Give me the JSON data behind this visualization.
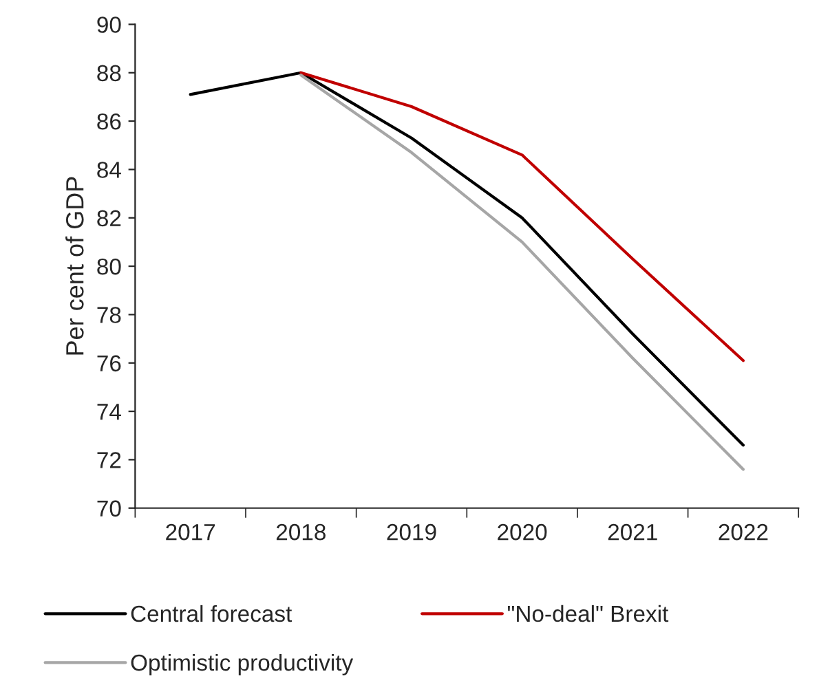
{
  "chart_data": {
    "type": "line",
    "ylabel": "Per cent of GDP",
    "categories": [
      "2017",
      "2018",
      "2019",
      "2020",
      "2021",
      "2022"
    ],
    "series": [
      {
        "name": "Central forecast",
        "color": "#000000",
        "values": [
          87.1,
          88.0,
          85.3,
          82.0,
          77.2,
          72.6
        ]
      },
      {
        "name": "\"No-deal\" Brexit",
        "color": "#c00000",
        "values": [
          null,
          88.0,
          86.6,
          84.6,
          80.3,
          76.1
        ]
      },
      {
        "name": "Optimistic productivity",
        "color": "#a6a6a6",
        "values": [
          null,
          87.9,
          84.7,
          81.0,
          76.2,
          71.6
        ]
      }
    ],
    "ylim": [
      70,
      90
    ],
    "yticks": [
      70,
      72,
      74,
      76,
      78,
      80,
      82,
      84,
      86,
      88,
      90
    ],
    "grid": false,
    "legend": "bottom",
    "marker": "none",
    "line_style": "solid"
  }
}
